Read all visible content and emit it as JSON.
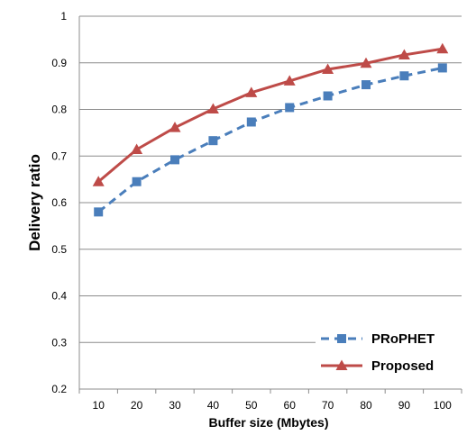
{
  "chart_data": {
    "type": "line",
    "title": "",
    "xlabel": "Buffer size (Mbytes)",
    "ylabel": "Delivery  ratio",
    "x": [
      10,
      20,
      30,
      40,
      50,
      60,
      70,
      80,
      90,
      100
    ],
    "ylim": [
      0.2,
      1
    ],
    "yticks": [
      "0.2",
      "0.3",
      "0.4",
      "0.5",
      "0.6",
      "0.7",
      "0.8",
      "0.9",
      "1"
    ],
    "grid": true,
    "legend_position": "bottom-right",
    "series": [
      {
        "name": "PRoPHET",
        "values": [
          0.58,
          0.645,
          0.692,
          0.733,
          0.773,
          0.804,
          0.829,
          0.853,
          0.872,
          0.889
        ],
        "color": "#4a7ebb",
        "marker": "square",
        "line": "dashed"
      },
      {
        "name": "Proposed",
        "values": [
          0.645,
          0.714,
          0.761,
          0.801,
          0.836,
          0.861,
          0.886,
          0.899,
          0.917,
          0.93
        ],
        "color": "#be4b48",
        "marker": "triangle",
        "line": "solid"
      }
    ]
  }
}
